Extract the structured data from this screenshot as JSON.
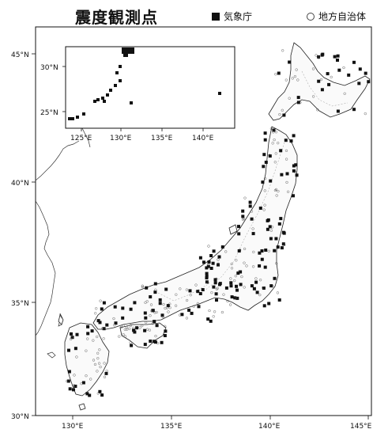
{
  "title": "震度観測点",
  "legend": {
    "jma": {
      "label": "気象庁",
      "color": "#111111",
      "symbol": "filled-square"
    },
    "local": {
      "label": "地方自治体",
      "color": "#444444",
      "symbol": "open-circle"
    }
  },
  "main_map": {
    "lon_ticks": [
      "130°E",
      "135°E",
      "140°E",
      "145°E"
    ],
    "lat_ticks": [
      "30°N",
      "35°N",
      "40°N",
      "45°N"
    ]
  },
  "inset_map": {
    "lon_ticks": [
      "125°E",
      "130°E",
      "135°E",
      "140°E"
    ],
    "lat_ticks": [
      "25°N",
      "30°N"
    ]
  }
}
